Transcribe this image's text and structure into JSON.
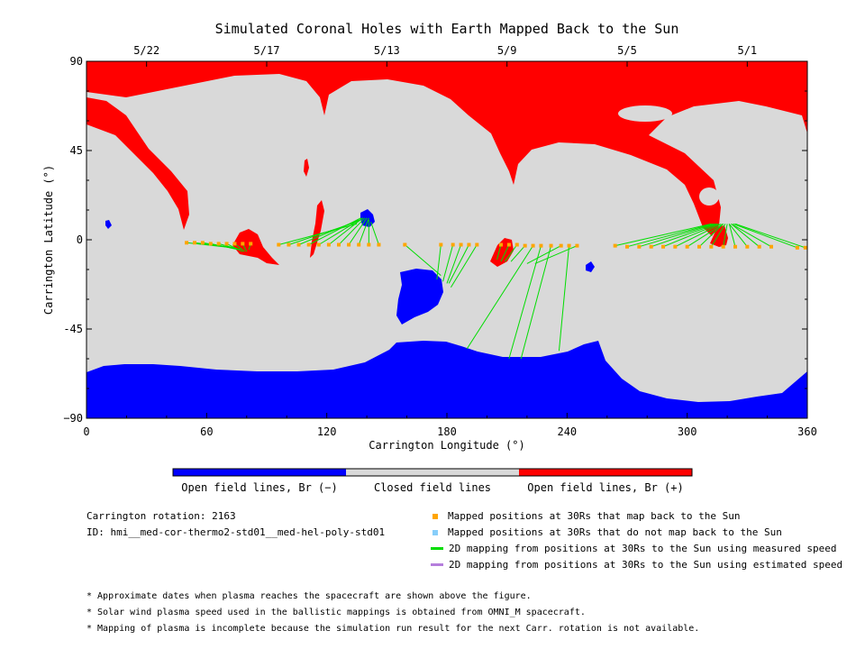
{
  "chart_data": {
    "type": "map",
    "title": "Simulated Coronal Holes with Earth Mapped Back to the Sun",
    "xlabel": "Carrington Longitude (°)",
    "ylabel": "Carrington Latitude (°)",
    "xlim": [
      0,
      360
    ],
    "ylim": [
      -90,
      90
    ],
    "x_ticks": [
      0,
      60,
      120,
      180,
      240,
      300,
      360
    ],
    "y_ticks": [
      {
        "value": 90,
        "label": "90"
      },
      {
        "value": 45,
        "label": "45"
      },
      {
        "value": 0,
        "label": "0"
      },
      {
        "value": -45,
        "label": "-45"
      },
      {
        "value": -90,
        "label": "−90"
      }
    ],
    "top_date_ticks": [
      {
        "label": "5/22",
        "lon": 30
      },
      {
        "label": "5/17",
        "lon": 90
      },
      {
        "label": "5/13",
        "lon": 150
      },
      {
        "label": "5/9",
        "lon": 210
      },
      {
        "label": "5/5",
        "lon": 270
      },
      {
        "label": "5/1",
        "lon": 330
      }
    ],
    "colors": {
      "open_negative": "#0000ff",
      "closed": "#d9d9d9",
      "open_positive": "#ff0000",
      "mapped_yes": "#ffa500",
      "mapped_no": "#87cefa",
      "measured_line": "#00dd00",
      "estimated_line": "#b57edc"
    },
    "colorbar": [
      {
        "label": "Open field lines, Br (−)",
        "color": "#0000ff"
      },
      {
        "label": "Closed field lines",
        "color": "#d9d9d9"
      },
      {
        "label": "Open field lines, Br (+)",
        "color": "#ff0000"
      }
    ],
    "mappings": [
      {
        "lon30": 50,
        "lat30": -1.5,
        "lon": 73,
        "lat": -4
      },
      {
        "lon30": 54,
        "lat30": -1.5,
        "lon": 74,
        "lat": -4
      },
      {
        "lon30": 58,
        "lat30": -1.5,
        "lon": 75,
        "lat": -4.5
      },
      {
        "lon30": 62,
        "lat30": -2,
        "lon": 76,
        "lat": -5
      },
      {
        "lon30": 66,
        "lat30": -2,
        "lon": 77,
        "lat": -5
      },
      {
        "lon30": 70,
        "lat30": -2,
        "lon": 78,
        "lat": -6
      },
      {
        "lon30": 74,
        "lat30": -2,
        "lon": 79,
        "lat": -6
      },
      {
        "lon30": 78,
        "lat30": -2,
        "lon": 80,
        "lat": -6
      },
      {
        "lon30": 82,
        "lat30": -2,
        "lon": 81,
        "lat": -5
      },
      {
        "lon30": 96,
        "lat30": -2.5,
        "lon": 135,
        "lat": 8
      },
      {
        "lon30": 101,
        "lat30": -2.5,
        "lon": 135,
        "lat": 9
      },
      {
        "lon30": 106,
        "lat30": -2.5,
        "lon": 136,
        "lat": 10
      },
      {
        "lon30": 111,
        "lat30": -2.5,
        "lon": 137,
        "lat": 11
      },
      {
        "lon30": 116,
        "lat30": -2.5,
        "lon": 138,
        "lat": 11
      },
      {
        "lon30": 121,
        "lat30": -2.5,
        "lon": 138,
        "lat": 11
      },
      {
        "lon30": 126,
        "lat30": -2.5,
        "lon": 139,
        "lat": 11
      },
      {
        "lon30": 131,
        "lat30": -2.5,
        "lon": 140,
        "lat": 11
      },
      {
        "lon30": 136,
        "lat30": -2.5,
        "lon": 141,
        "lat": 11
      },
      {
        "lon30": 141,
        "lat30": -2.5,
        "lon": 141,
        "lat": 10
      },
      {
        "lon30": 146,
        "lat30": -2.5,
        "lon": 142,
        "lat": 9
      },
      {
        "lon30": 159,
        "lat30": -2.5,
        "lon": 177,
        "lat": -18
      },
      {
        "lon30": 177,
        "lat30": -2.5,
        "lon": 175,
        "lat": -20
      },
      {
        "lon30": 183,
        "lat30": -2.5,
        "lon": 178,
        "lat": -21
      },
      {
        "lon30": 187,
        "lat30": -2.5,
        "lon": 180,
        "lat": -22
      },
      {
        "lon30": 191,
        "lat30": -2.5,
        "lon": 181,
        "lat": -22
      },
      {
        "lon30": 195,
        "lat30": -2.5,
        "lon": 182,
        "lat": -24
      },
      {
        "lon30": 207,
        "lat30": -2.5,
        "lon": 205,
        "lat": -10
      },
      {
        "lon30": 211,
        "lat30": -2.5,
        "lon": 207,
        "lat": -11
      },
      {
        "lon30": 215,
        "lat30": -2.5,
        "lon": 209,
        "lat": -11
      },
      {
        "lon30": 219,
        "lat30": -3,
        "lon": 212,
        "lat": -11
      },
      {
        "lon30": 223,
        "lat30": -3,
        "lon": 190,
        "lat": -55
      },
      {
        "lon30": 227,
        "lat30": -3,
        "lon": 211,
        "lat": -60
      },
      {
        "lon30": 232,
        "lat30": -3,
        "lon": 217,
        "lat": -60
      },
      {
        "lon30": 237,
        "lat30": -3,
        "lon": 220,
        "lat": -12
      },
      {
        "lon30": 241,
        "lat30": -3,
        "lon": 236,
        "lat": -56
      },
      {
        "lon30": 245,
        "lat30": -3,
        "lon": 224,
        "lat": -12
      },
      {
        "lon30": 264,
        "lat30": -3,
        "lon": 312,
        "lat": 8
      },
      {
        "lon30": 270,
        "lat30": -3.5,
        "lon": 313,
        "lat": 8
      },
      {
        "lon30": 276,
        "lat30": -3.5,
        "lon": 314,
        "lat": 8
      },
      {
        "lon30": 282,
        "lat30": -3.5,
        "lon": 315,
        "lat": 8
      },
      {
        "lon30": 288,
        "lat30": -3.5,
        "lon": 316,
        "lat": 8
      },
      {
        "lon30": 294,
        "lat30": -3.5,
        "lon": 317,
        "lat": 8
      },
      {
        "lon30": 300,
        "lat30": -3.5,
        "lon": 318,
        "lat": 8
      },
      {
        "lon30": 306,
        "lat30": -3.5,
        "lon": 318,
        "lat": 8
      },
      {
        "lon30": 312,
        "lat30": -3.5,
        "lon": 319,
        "lat": 8
      },
      {
        "lon30": 318,
        "lat30": -3.5,
        "lon": 320,
        "lat": 8
      },
      {
        "lon30": 324,
        "lat30": -3.5,
        "lon": 321,
        "lat": 8
      },
      {
        "lon30": 330,
        "lat30": -3.5,
        "lon": 321,
        "lat": 8
      },
      {
        "lon30": 336,
        "lat30": -3.5,
        "lon": 322,
        "lat": 8
      },
      {
        "lon30": 342,
        "lat30": -3.5,
        "lon": 322,
        "lat": 8
      },
      {
        "lon30": 355,
        "lat30": -4,
        "lon": 323,
        "lat": 8
      },
      {
        "lon30": 359,
        "lat30": -4,
        "lon": 324,
        "lat": 8
      }
    ]
  },
  "info": {
    "rotation": "Carrington rotation: 2163",
    "id": "ID: hmi__med-cor-thermo2-std01__med-hel-poly-std01"
  },
  "legend": [
    {
      "kind": "square",
      "color": "#ffa500",
      "label": "Mapped positions at 30Rs that map back to the Sun"
    },
    {
      "kind": "square",
      "color": "#87cefa",
      "label": "Mapped positions at 30Rs that do not map back to the Sun"
    },
    {
      "kind": "line",
      "color": "#00dd00",
      "label": "2D mapping from positions at 30Rs to the Sun using measured speed"
    },
    {
      "kind": "line",
      "color": "#b57edc",
      "label": "2D mapping from positions at 30Rs to the Sun using estimated speed"
    }
  ],
  "notes": [
    "* Approximate dates when plasma reaches the spacecraft are shown above the figure.",
    "* Solar wind plasma speed used in the ballistic mappings is obtained from OMNI_M spacecraft.",
    "* Mapping of plasma is incomplete because the simulation run result for the next Carr. rotation is not available."
  ]
}
